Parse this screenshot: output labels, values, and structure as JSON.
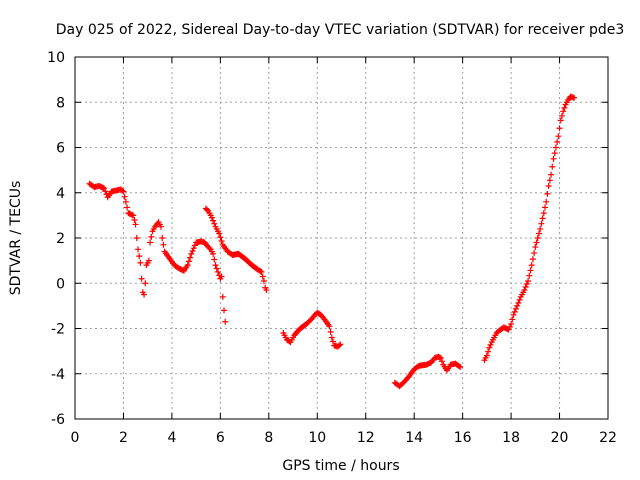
{
  "chart_data": {
    "type": "scatter",
    "title": "Day 025 of 2022, Sidereal Day-to-day VTEC variation (SDTVAR) for receiver pde3",
    "xlabel": "GPS time / hours",
    "ylabel": "SDTVAR / TECUs",
    "xlim": [
      0,
      22
    ],
    "ylim": [
      -6,
      10
    ],
    "xticks": [
      0,
      2,
      4,
      6,
      8,
      10,
      12,
      14,
      16,
      18,
      20,
      22
    ],
    "yticks": [
      -6,
      -4,
      -2,
      0,
      2,
      4,
      6,
      8,
      10
    ],
    "grid": true,
    "marker": "+",
    "color": "#ff0000",
    "series": [
      {
        "name": "pde3",
        "segments": [
          [
            [
              0.6,
              4.4
            ],
            [
              0.8,
              4.25
            ],
            [
              1.0,
              4.3
            ],
            [
              1.2,
              4.2
            ],
            [
              1.35,
              3.8
            ],
            [
              1.5,
              4.05
            ],
            [
              1.7,
              4.1
            ],
            [
              1.9,
              4.15
            ],
            [
              2.0,
              4.05
            ],
            [
              2.1,
              3.6
            ],
            [
              2.2,
              3.1
            ],
            [
              2.4,
              3.0
            ],
            [
              2.5,
              2.6
            ],
            [
              2.55,
              2.0
            ],
            [
              2.6,
              1.5
            ],
            [
              2.7,
              0.9
            ],
            [
              2.75,
              0.2
            ],
            [
              2.8,
              -0.4
            ],
            [
              2.85,
              -0.5
            ],
            [
              2.9,
              0.0
            ],
            [
              2.95,
              0.8
            ],
            [
              3.05,
              1.0
            ],
            [
              3.1,
              1.8
            ],
            [
              3.2,
              2.3
            ],
            [
              3.3,
              2.5
            ],
            [
              3.45,
              2.7
            ],
            [
              3.55,
              2.5
            ],
            [
              3.6,
              2.0
            ],
            [
              3.7,
              1.4
            ],
            [
              3.9,
              1.1
            ],
            [
              4.1,
              0.8
            ],
            [
              4.3,
              0.65
            ],
            [
              4.5,
              0.55
            ],
            [
              4.65,
              0.8
            ],
            [
              4.8,
              1.3
            ],
            [
              5.0,
              1.8
            ],
            [
              5.2,
              1.85
            ],
            [
              5.35,
              1.8
            ],
            [
              5.5,
              1.6
            ],
            [
              5.6,
              1.5
            ],
            [
              5.7,
              1.3
            ],
            [
              5.8,
              0.8
            ],
            [
              5.9,
              0.5
            ],
            [
              6.0,
              0.2
            ],
            [
              6.05,
              0.3
            ],
            [
              6.1,
              -0.6
            ],
            [
              6.15,
              -1.2
            ],
            [
              6.2,
              -1.7
            ]
          ],
          [
            [
              5.4,
              3.3
            ],
            [
              5.5,
              3.2
            ],
            [
              5.65,
              2.9
            ],
            [
              5.8,
              2.5
            ],
            [
              5.95,
              2.2
            ],
            [
              6.1,
              1.7
            ],
            [
              6.3,
              1.4
            ],
            [
              6.5,
              1.25
            ],
            [
              6.75,
              1.3
            ],
            [
              7.0,
              1.1
            ],
            [
              7.3,
              0.8
            ],
            [
              7.55,
              0.6
            ],
            [
              7.7,
              0.5
            ],
            [
              7.8,
              0.1
            ],
            [
              7.85,
              -0.2
            ],
            [
              7.9,
              -0.3
            ]
          ],
          [
            [
              8.6,
              -2.2
            ],
            [
              8.75,
              -2.5
            ],
            [
              8.9,
              -2.6
            ],
            [
              9.05,
              -2.3
            ],
            [
              9.3,
              -2.0
            ],
            [
              9.55,
              -1.8
            ],
            [
              9.75,
              -1.6
            ],
            [
              9.9,
              -1.4
            ],
            [
              10.0,
              -1.3
            ],
            [
              10.15,
              -1.4
            ],
            [
              10.3,
              -1.6
            ],
            [
              10.5,
              -1.9
            ],
            [
              10.6,
              -2.4
            ],
            [
              10.7,
              -2.75
            ],
            [
              10.85,
              -2.8
            ],
            [
              10.95,
              -2.7
            ]
          ],
          [
            [
              13.2,
              -4.4
            ],
            [
              13.4,
              -4.55
            ],
            [
              13.6,
              -4.35
            ],
            [
              13.8,
              -4.1
            ],
            [
              14.0,
              -3.8
            ],
            [
              14.2,
              -3.65
            ],
            [
              14.5,
              -3.6
            ],
            [
              14.7,
              -3.5
            ],
            [
              14.85,
              -3.3
            ],
            [
              15.0,
              -3.25
            ],
            [
              15.1,
              -3.3
            ],
            [
              15.2,
              -3.6
            ],
            [
              15.35,
              -3.85
            ],
            [
              15.5,
              -3.6
            ],
            [
              15.7,
              -3.55
            ],
            [
              15.9,
              -3.7
            ]
          ],
          [
            [
              16.9,
              -3.4
            ],
            [
              17.0,
              -3.2
            ],
            [
              17.1,
              -2.85
            ],
            [
              17.2,
              -2.6
            ],
            [
              17.4,
              -2.2
            ],
            [
              17.5,
              -2.1
            ],
            [
              17.7,
              -1.95
            ],
            [
              17.9,
              -2.05
            ],
            [
              18.0,
              -1.8
            ],
            [
              18.1,
              -1.4
            ],
            [
              18.25,
              -1.0
            ],
            [
              18.4,
              -0.6
            ],
            [
              18.55,
              -0.3
            ],
            [
              18.7,
              0.1
            ],
            [
              18.85,
              0.8
            ],
            [
              19.0,
              1.6
            ],
            [
              19.1,
              2.0
            ],
            [
              19.2,
              2.4
            ],
            [
              19.35,
              3.1
            ],
            [
              19.45,
              3.6
            ],
            [
              19.55,
              4.3
            ],
            [
              19.65,
              4.8
            ],
            [
              19.75,
              5.5
            ],
            [
              19.85,
              6.0
            ],
            [
              19.95,
              6.5
            ],
            [
              20.05,
              7.2
            ],
            [
              20.15,
              7.6
            ],
            [
              20.25,
              7.9
            ],
            [
              20.35,
              8.1
            ],
            [
              20.45,
              8.25
            ],
            [
              20.6,
              8.2
            ]
          ]
        ]
      }
    ]
  }
}
